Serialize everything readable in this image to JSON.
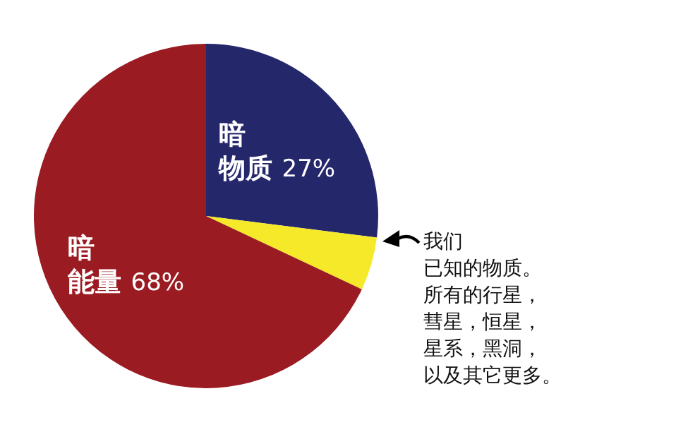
{
  "chart_data": {
    "type": "pie",
    "categories": [
      "暗物质",
      "我们已知的物质。所有的行星，彗星，恒星，星系，黑洞，以及其它更多。",
      "暗能量"
    ],
    "values": [
      27,
      5,
      68
    ],
    "colors": [
      "#25276b",
      "#f5e92a",
      "#9b1b22"
    ],
    "value_labels": [
      "27%",
      null,
      "68%"
    ],
    "legend": false
  }
}
